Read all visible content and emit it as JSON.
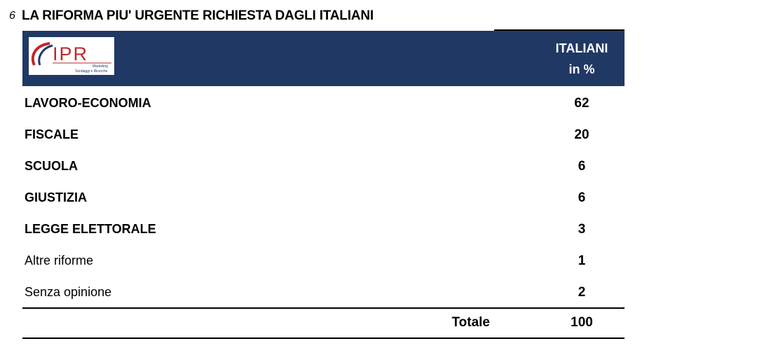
{
  "question": {
    "number": "6",
    "title": "LA RIFORMA PIU' URGENTE RICHIESTA DAGLI ITALIANI"
  },
  "logo": {
    "text": "IPR",
    "subtext_1": "Marketing",
    "subtext_2": "Sondaggi e Ricerche"
  },
  "header": {
    "column_line1": "ITALIANI",
    "column_line2": "in %"
  },
  "rows": [
    {
      "label": "LAVORO-ECONOMIA",
      "value": "62"
    },
    {
      "label": "FISCALE",
      "value": "20"
    },
    {
      "label": "SCUOLA",
      "value": "6"
    },
    {
      "label": "GIUSTIZIA",
      "value": "6"
    },
    {
      "label": "LEGGE ELETTORALE",
      "value": "3"
    },
    {
      "label": "Altre riforme",
      "value": "1"
    },
    {
      "label": "Senza opinione",
      "value": "2"
    }
  ],
  "total": {
    "label": "Totale",
    "value": "100"
  },
  "colors": {
    "header_band": "#203864",
    "logo_red": "#c0272d",
    "logo_navy": "#1f3a6b"
  }
}
